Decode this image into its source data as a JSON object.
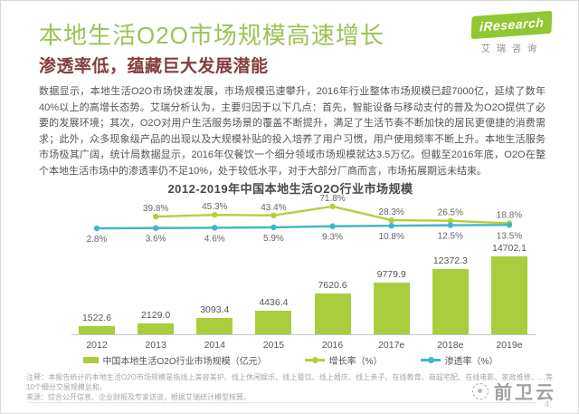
{
  "page": {
    "title": "本地生活O2O市场规模高速增长",
    "subtitle": "渗透率低，蕴藏巨大发展潜能",
    "page_number": "4"
  },
  "logo": {
    "brand": "iResearch",
    "brand_cn": "艾瑞咨询"
  },
  "body_text": "数据显示，本地生活O2O市场快速发展，市场规模迅速攀升，2016年行业整体市场规模已超7000亿，延续了数年40%以上的高增长态势。艾瑞分析认为，主要归因于以下几点：首先，智能设备与移动支付的普及为O2O提供了必要的发展环境；其次，O2O对用户生活服务场景的覆盖不断提升，满足了生活节奏不断加快的居民更便捷的消费需求；此外，众多现象级产品的出现以及大规模补贴的投入培养了用户习惯，用户使用频率不断上升。本地生活服务市场极其广阔，统计局数据显示，2016年仅餐饮一个细分领域市场规模就达3.5万亿。但截至2016年底，O2O在整个本地生活市场中的渗透率仍不足10%，处于较低水平，对于大部分厂商而言，市场拓展期远未结束。",
  "chart_data": {
    "type": "bar",
    "title": "2012-2019年中国本地生活O2O行业市场规模",
    "categories": [
      "2012",
      "2013",
      "2014",
      "2015",
      "2016",
      "2017e",
      "2018e",
      "2019e"
    ],
    "unit": "亿元",
    "grid": false,
    "legend_position": "bottom",
    "series": [
      {
        "name": "中国本地生活O2O行业市场规模（亿元）",
        "type": "bar",
        "color": "#aacd3e",
        "values": [
          1522.6,
          2129.0,
          3093.4,
          4436.4,
          7620.6,
          9779.9,
          12372.3,
          14702.1
        ],
        "labels": [
          "1522.6",
          "2129.0",
          "3093.4",
          "4436.4",
          "7620.6",
          "9779.9",
          "12372.3",
          "14702.1"
        ]
      },
      {
        "name": "增长率（%）",
        "type": "line",
        "color": "#b5cf3c",
        "label_pos": "above",
        "values": [
          null,
          39.8,
          45.3,
          43.4,
          71.8,
          28.3,
          26.5,
          18.8
        ],
        "labels": [
          "",
          "39.8%",
          "45.3%",
          "43.4%",
          "71.8%",
          "28.3%",
          "26.5%",
          "18.8%"
        ]
      },
      {
        "name": "渗透率（%）",
        "type": "line",
        "color": "#3db7cd",
        "label_pos": "below",
        "values": [
          2.8,
          3.6,
          4.6,
          5.9,
          9.3,
          10.8,
          12.5,
          13.5
        ],
        "labels": [
          "2.8%",
          "3.6%",
          "4.6%",
          "5.9%",
          "9.3%",
          "10.8%",
          "12.5%",
          "13.5%"
        ]
      }
    ]
  },
  "notes": {
    "note1": "注释：本报告统计的本地生活O2O市场规模是指线上美容美护、线上休闲娱乐、线上餐饮、线上婚庆、线上亲子、在线教育、商超宅配、在线电影、家政维修、…等10个细分交易规模总和。",
    "note2": "来源：综合公开信息、企业财报及专家访谈，根据艾瑞统计模型核算。"
  },
  "watermark": {
    "text": "前卫云"
  }
}
